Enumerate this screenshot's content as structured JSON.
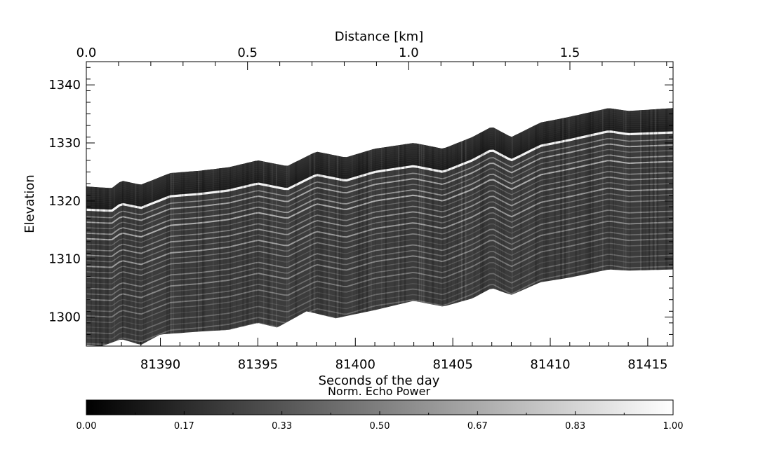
{
  "chart_data": {
    "type": "heatmap",
    "title": "",
    "top_axis": {
      "label": "Distance [km]",
      "ticks": [
        "0.0",
        "0.5",
        "1.0",
        "1.5"
      ],
      "tick_values": [
        0.0,
        0.5,
        1.0,
        1.5
      ],
      "range": [
        0.0,
        1.82
      ]
    },
    "x_axis": {
      "label": "Seconds of the day",
      "ticks": [
        "81390",
        "81395",
        "81400",
        "81405",
        "81410",
        "81415"
      ],
      "tick_values": [
        81390,
        81395,
        81400,
        81405,
        81410,
        81415
      ],
      "range": [
        81386.2,
        81416.3
      ]
    },
    "y_axis": {
      "label": "Elevation",
      "ticks": [
        "1300",
        "1310",
        "1320",
        "1330",
        "1340"
      ],
      "tick_values": [
        1300,
        1310,
        1320,
        1330,
        1340
      ],
      "range": [
        1295,
        1344
      ]
    },
    "echo_surface": {
      "x": [
        81386.2,
        81387.5,
        81388.0,
        81389.0,
        81390.5,
        81392.0,
        81393.5,
        81395.0,
        81396.5,
        81398.0,
        81399.5,
        81401.0,
        81403.0,
        81404.5,
        81406.0,
        81407.0,
        81408.0,
        81409.5,
        81411.0,
        81413.0,
        81414.0,
        81416.3
      ],
      "y": [
        1322.5,
        1322.2,
        1323.5,
        1322.8,
        1324.8,
        1325.2,
        1325.8,
        1327.0,
        1326.0,
        1328.5,
        1327.5,
        1329.0,
        1330.0,
        1329.0,
        1331.0,
        1332.8,
        1331.0,
        1333.5,
        1334.5,
        1336.0,
        1335.5,
        1336.0
      ]
    },
    "surface_reflector": {
      "x": [
        81386.2,
        81387.5,
        81388.0,
        81389.0,
        81390.5,
        81392.0,
        81393.5,
        81395.0,
        81396.5,
        81398.0,
        81399.5,
        81401.0,
        81403.0,
        81404.5,
        81406.0,
        81407.0,
        81408.0,
        81409.5,
        81411.0,
        81413.0,
        81414.0,
        81416.3
      ],
      "y": [
        1318.5,
        1318.3,
        1319.5,
        1318.8,
        1320.8,
        1321.2,
        1321.8,
        1323.0,
        1322.0,
        1324.5,
        1323.5,
        1325.0,
        1326.0,
        1325.0,
        1327.0,
        1328.8,
        1327.0,
        1329.5,
        1330.5,
        1332.0,
        1331.5,
        1331.8
      ]
    },
    "data_bottom": {
      "x": [
        81386.2,
        81387.0,
        81388.0,
        81389.0,
        81390.0,
        81392.0,
        81393.5,
        81395.0,
        81396.0,
        81397.5,
        81399.0,
        81401.0,
        81403.0,
        81404.5,
        81406.0,
        81407.0,
        81408.0,
        81409.5,
        81411.0,
        81413.0,
        81414.0,
        81416.3
      ],
      "y": [
        1295.2,
        1295.0,
        1296.2,
        1295.2,
        1297.0,
        1297.5,
        1297.8,
        1299.0,
        1298.2,
        1301.0,
        1299.8,
        1301.2,
        1302.8,
        1301.8,
        1303.2,
        1305.0,
        1303.8,
        1306.0,
        1306.8,
        1308.2,
        1308.0,
        1308.2
      ]
    },
    "grid": false,
    "colormap": "grayscale",
    "colorbar": {
      "label": "Norm. Echo Power",
      "ticks": [
        "0.00",
        "0.17",
        "0.33",
        "0.50",
        "0.67",
        "0.83",
        "1.00"
      ],
      "tick_values": [
        0.0,
        0.1667,
        0.3333,
        0.5,
        0.6667,
        0.8333,
        1.0
      ],
      "range": [
        0.0,
        1.0
      ]
    }
  }
}
